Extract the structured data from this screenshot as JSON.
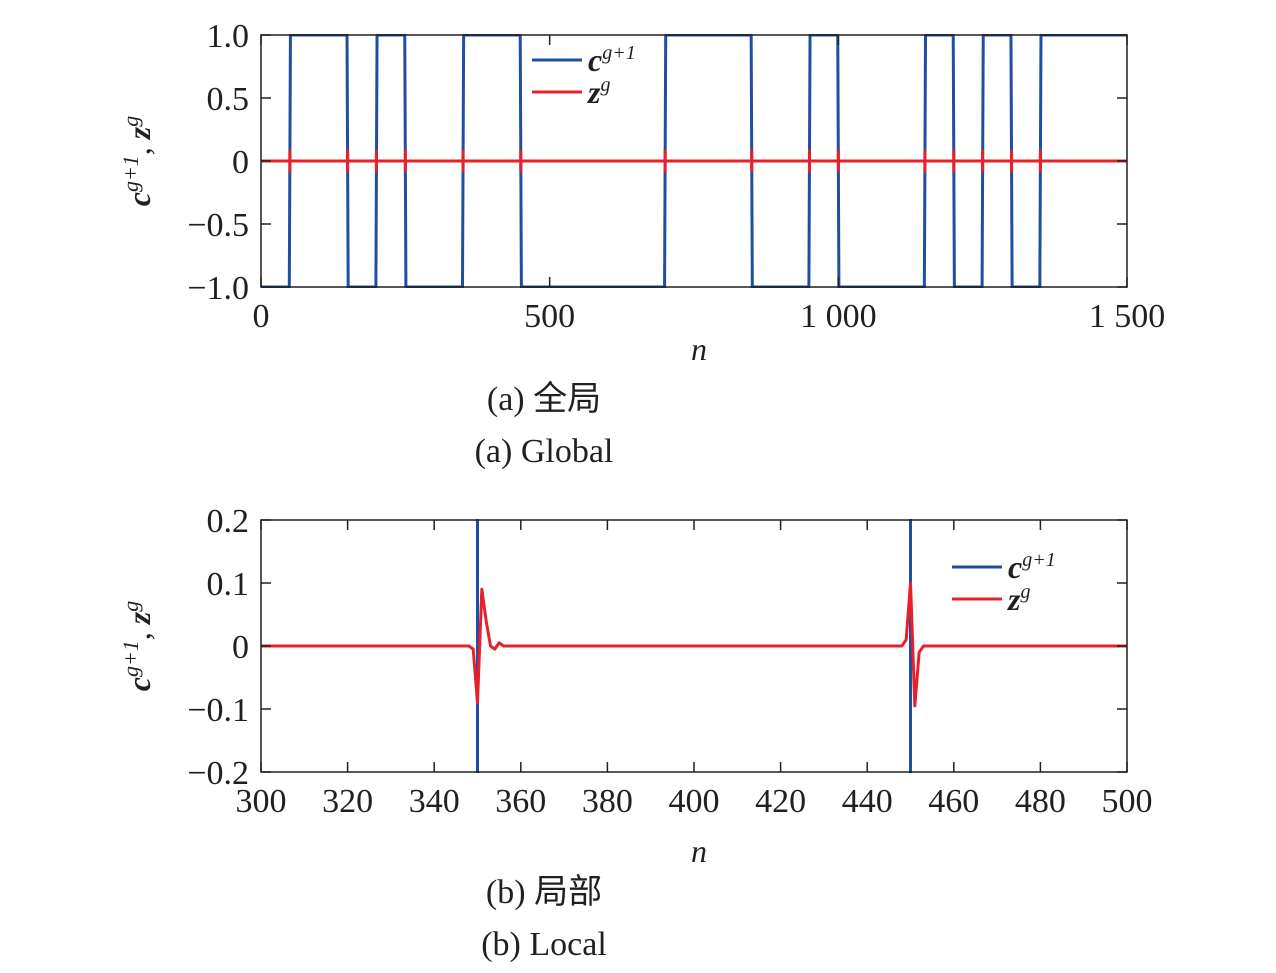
{
  "chart_data": [
    {
      "type": "line",
      "xlabel": "n",
      "ylabel": {
        "c": "c",
        "c_sup": "g+1",
        "sep": ", ",
        "z": "z",
        "z_sup": "g"
      },
      "xlim": [
        0,
        1500
      ],
      "ylim": [
        -1.0,
        1.0
      ],
      "xticks": [
        0,
        500,
        1000,
        1500
      ],
      "xtick_labels": [
        "0",
        "500",
        "1 000",
        "1 500"
      ],
      "yticks": [
        -1.0,
        -0.5,
        0,
        0.5,
        1.0
      ],
      "ytick_labels": [
        "−1.0",
        "−0.5",
        "0",
        "0.5",
        "1.0"
      ],
      "grid": false,
      "legend_position": "top-center",
      "captions": [
        "(a) 全局",
        "(a) Global"
      ],
      "series": [
        {
          "name": {
            "base": "c",
            "sup": "g+1"
          },
          "color": "#1f4fa3",
          "kind": "step",
          "initial": -1,
          "transitions": [
            50,
            150,
            200,
            250,
            350,
            450,
            700,
            850,
            950,
            1000,
            1150,
            1200,
            1250,
            1300,
            1350
          ],
          "end": 1500
        },
        {
          "name": {
            "base": "z",
            "sup": "g"
          },
          "color": "#e8202a",
          "kind": "spikes",
          "baseline": 0,
          "spike_amplitude": 0.09,
          "spike_positions": [
            50,
            150,
            200,
            250,
            350,
            450,
            700,
            850,
            950,
            1000,
            1150,
            1200,
            1250,
            1300,
            1350
          ],
          "x_end": 1500
        }
      ]
    },
    {
      "type": "line",
      "xlabel": "n",
      "ylabel": {
        "c": "c",
        "c_sup": "g+1",
        "sep": ", ",
        "z": "z",
        "z_sup": "g"
      },
      "xlim": [
        300,
        500
      ],
      "ylim": [
        -0.2,
        0.2
      ],
      "xticks": [
        300,
        320,
        340,
        360,
        380,
        400,
        420,
        440,
        460,
        480,
        500
      ],
      "xtick_labels": [
        "300",
        "320",
        "340",
        "360",
        "380",
        "400",
        "420",
        "440",
        "460",
        "480",
        "500"
      ],
      "yticks": [
        -0.2,
        -0.1,
        0,
        0.1,
        0.2
      ],
      "ytick_labels": [
        "−0.2",
        "−0.1",
        "0",
        "0.1",
        "0.2"
      ],
      "grid": false,
      "legend_position": "top-right",
      "captions": [
        "(b) 局部",
        "(b) Local"
      ],
      "series": [
        {
          "name": {
            "base": "c",
            "sup": "g+1"
          },
          "color": "#1f4fa3",
          "kind": "vertical-lines",
          "positions": [
            350,
            450
          ]
        },
        {
          "name": {
            "base": "z",
            "sup": "g"
          },
          "color": "#e8202a",
          "kind": "points",
          "x": [
            300,
            348,
            349,
            350,
            351,
            352,
            353,
            354,
            355,
            356,
            357,
            448,
            449,
            450,
            451,
            452,
            453,
            486,
            500
          ],
          "y": [
            0,
            0,
            -0.005,
            -0.09,
            0.09,
            0.04,
            0.0,
            -0.005,
            0.005,
            0.0,
            0,
            0,
            0.01,
            0.1,
            -0.095,
            -0.01,
            0,
            0,
            0
          ]
        }
      ]
    }
  ]
}
